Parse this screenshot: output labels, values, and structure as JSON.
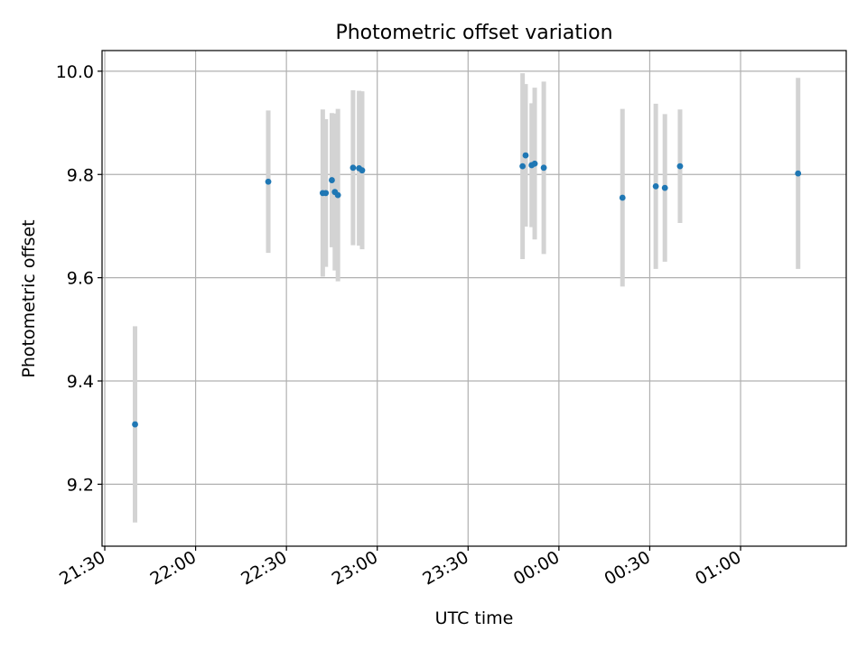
{
  "chart_data": {
    "type": "scatter",
    "title": "Photometric offset variation",
    "xlabel": "UTC time",
    "ylabel": "Photometric offset",
    "x_ticks": [
      "21:30",
      "22:00",
      "22:30",
      "23:00",
      "23:30",
      "00:00",
      "00:30",
      "01:00"
    ],
    "y_ticks": [
      "9.2",
      "9.4",
      "9.6",
      "9.8",
      "10.0"
    ],
    "xlim": [
      "21:30",
      "01:30"
    ],
    "ylim": [
      9.08,
      10.04
    ],
    "grid": true,
    "colors": {
      "point": "#1f77b4",
      "errorbar": "#d3d3d3",
      "grid": "#b0b0b0"
    },
    "points": [
      {
        "x": "21:40",
        "y": 9.316,
        "yerr": 0.19
      },
      {
        "x": "22:24",
        "y": 9.786,
        "yerr": 0.138
      },
      {
        "x": "22:42",
        "y": 9.764,
        "yerr": 0.162
      },
      {
        "x": "22:43",
        "y": 9.764,
        "yerr": 0.143
      },
      {
        "x": "22:45",
        "y": 9.789,
        "yerr": 0.13
      },
      {
        "x": "22:46",
        "y": 9.766,
        "yerr": 0.152
      },
      {
        "x": "22:47",
        "y": 9.76,
        "yerr": 0.167
      },
      {
        "x": "22:52",
        "y": 9.813,
        "yerr": 0.15
      },
      {
        "x": "22:54",
        "y": 9.812,
        "yerr": 0.15
      },
      {
        "x": "22:55",
        "y": 9.808,
        "yerr": 0.153
      },
      {
        "x": "23:48",
        "y": 9.816,
        "yerr": 0.18
      },
      {
        "x": "23:49",
        "y": 9.837,
        "yerr": 0.138
      },
      {
        "x": "23:51",
        "y": 9.818,
        "yerr": 0.12
      },
      {
        "x": "23:52",
        "y": 9.821,
        "yerr": 0.147
      },
      {
        "x": "23:55",
        "y": 9.813,
        "yerr": 0.167
      },
      {
        "x": "00:21",
        "y": 9.755,
        "yerr": 0.172
      },
      {
        "x": "00:32",
        "y": 9.777,
        "yerr": 0.16
      },
      {
        "x": "00:35",
        "y": 9.774,
        "yerr": 0.143
      },
      {
        "x": "00:40",
        "y": 9.816,
        "yerr": 0.11
      },
      {
        "x": "01:19",
        "y": 9.802,
        "yerr": 0.185
      }
    ]
  }
}
